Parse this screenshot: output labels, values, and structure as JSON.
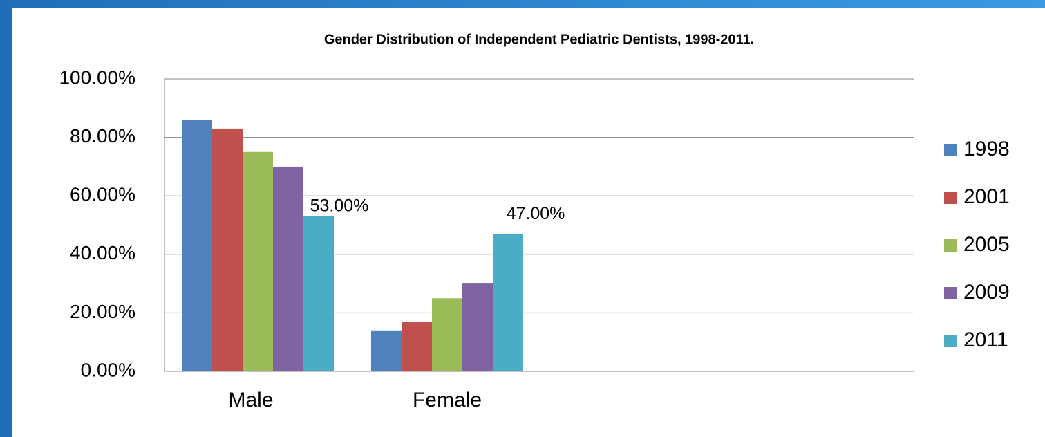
{
  "chart_data": {
    "type": "bar",
    "title": "Gender Distribution of Independent Pediatric Dentists, 1998-2011.",
    "categories": [
      "Male",
      "Female"
    ],
    "series": [
      {
        "name": "1998",
        "color": "#4f81bd",
        "values": [
          86,
          14
        ]
      },
      {
        "name": "2001",
        "color": "#c0504d",
        "values": [
          83,
          17
        ]
      },
      {
        "name": "2005",
        "color": "#9bbb59",
        "values": [
          75,
          25
        ]
      },
      {
        "name": "2009",
        "color": "#8064a2",
        "values": [
          70,
          30
        ]
      },
      {
        "name": "2011",
        "color": "#4bacc6",
        "values": [
          53,
          47
        ],
        "value_labels": [
          "53.00%",
          "47.00%"
        ]
      }
    ],
    "ylim": [
      0,
      100
    ],
    "yticks": [
      {
        "value": 0,
        "label": "0.00%"
      },
      {
        "value": 20,
        "label": "20.00%"
      },
      {
        "value": 40,
        "label": "40.00%"
      },
      {
        "value": 60,
        "label": "60.00%"
      },
      {
        "value": 80,
        "label": "80.00%"
      },
      {
        "value": 100,
        "label": "100.00%"
      }
    ],
    "grid": true,
    "legend": "right"
  }
}
